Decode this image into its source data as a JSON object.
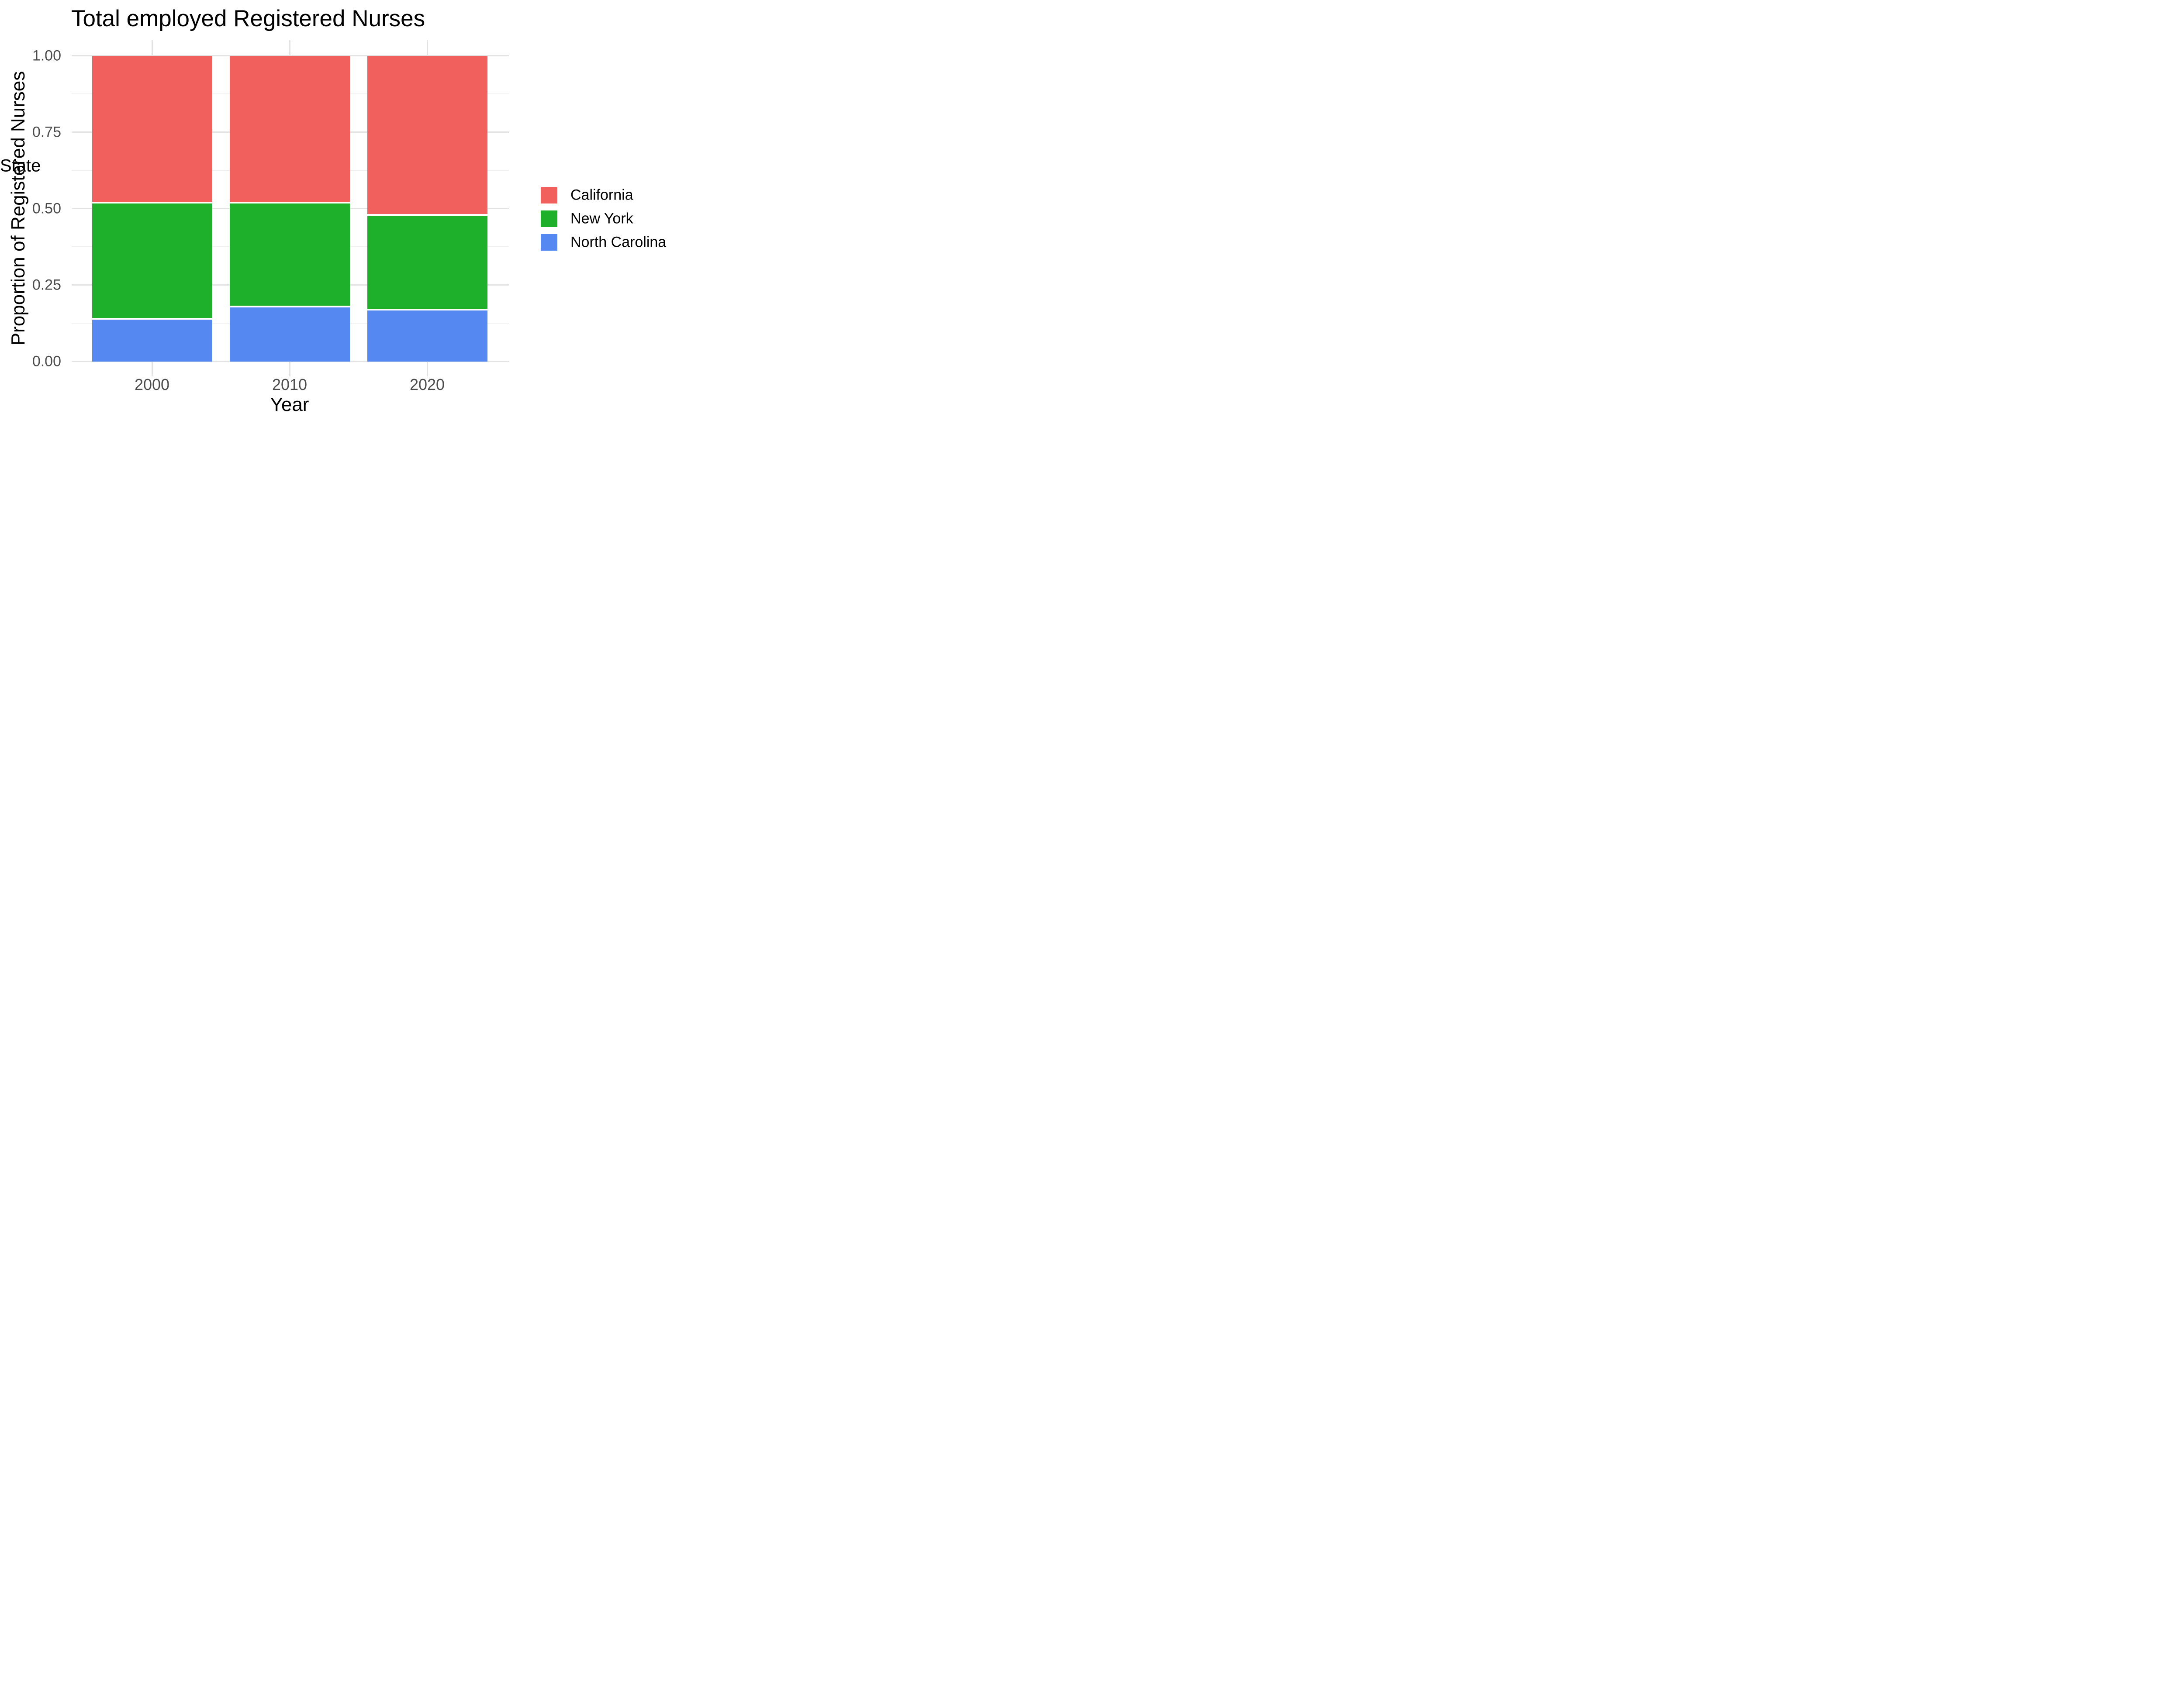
{
  "title": "Total employed Registered Nurses",
  "chart_data": {
    "type": "bar",
    "subtype": "stacked-proportion",
    "title": "Total employed Registered Nurses",
    "xlabel": "Year",
    "ylabel": "Proportion of Registered Nurses",
    "categories": [
      "2000",
      "2010",
      "2020"
    ],
    "series": [
      {
        "name": "California",
        "color": "#F2605D",
        "values": [
          0.48,
          0.48,
          0.52
        ]
      },
      {
        "name": "New York",
        "color": "#1FB02B",
        "values": [
          0.38,
          0.34,
          0.31
        ]
      },
      {
        "name": "North Carolina",
        "color": "#5688F2",
        "values": [
          0.14,
          0.18,
          0.17
        ]
      }
    ],
    "stack_order_bottom_to_top": [
      "North Carolina",
      "New York",
      "California"
    ],
    "ylim": [
      0,
      1
    ],
    "y_major_ticks": [
      {
        "value": 1.0,
        "label": "1.00"
      },
      {
        "value": 0.75,
        "label": "0.75"
      },
      {
        "value": 0.5,
        "label": "0.50"
      },
      {
        "value": 0.25,
        "label": "0.25"
      },
      {
        "value": 0.0,
        "label": "0.00"
      }
    ],
    "y_minor_ticks": [
      0.875,
      0.625,
      0.375,
      0.125
    ],
    "grid": "horizontal-major-minor, vertical-major-at-category-centers",
    "legend": {
      "title": "State",
      "position": "right",
      "entries": [
        {
          "label": "California",
          "color": "#F2605D"
        },
        {
          "label": "New York",
          "color": "#1FB02B"
        },
        {
          "label": "North Carolina",
          "color": "#5688F2"
        }
      ]
    }
  },
  "style": {
    "background": "#FFFFFF",
    "grid_major_color": "#E3E3E3",
    "grid_minor_color": "#F0F0F0",
    "tick_label_color": "#4D4D4D",
    "text_color": "#000000",
    "segment_divider_color": "#FFFFFF"
  }
}
